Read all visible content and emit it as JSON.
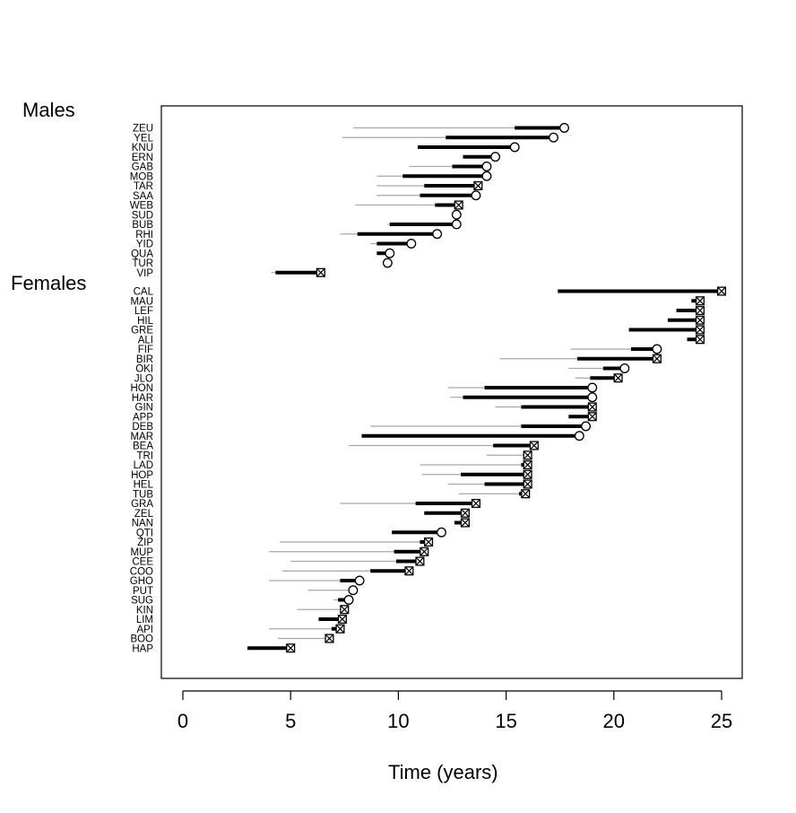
{
  "chart_data": {
    "type": "interval",
    "xlabel": "Time (years)",
    "xlim": [
      0,
      25
    ],
    "x_ticks": [
      "0",
      "5",
      "10",
      "15",
      "20",
      "25"
    ],
    "groups": [
      {
        "name": "Males",
        "items": [
          {
            "id": "ZEU",
            "thin_start": 7.9,
            "thick_start": 15.4,
            "end": 17.7,
            "marker": "open"
          },
          {
            "id": "YEL",
            "thin_start": 7.4,
            "thick_start": 12.2,
            "end": 17.2,
            "marker": "open"
          },
          {
            "id": "KNU",
            "thin_start": null,
            "thick_start": 10.9,
            "end": 15.4,
            "marker": "open"
          },
          {
            "id": "ERN",
            "thin_start": null,
            "thick_start": 13.0,
            "end": 14.5,
            "marker": "open"
          },
          {
            "id": "GAB",
            "thin_start": 10.5,
            "thick_start": 12.5,
            "end": 14.1,
            "marker": "open"
          },
          {
            "id": "MOB",
            "thin_start": 9.0,
            "thick_start": 10.2,
            "end": 14.1,
            "marker": "open"
          },
          {
            "id": "TAR",
            "thin_start": 9.0,
            "thick_start": 11.2,
            "end": 13.7,
            "marker": "censored"
          },
          {
            "id": "SAA",
            "thin_start": 9.0,
            "thick_start": 11.0,
            "end": 13.6,
            "marker": "open"
          },
          {
            "id": "WEB",
            "thin_start": 8.0,
            "thick_start": 11.7,
            "end": 12.8,
            "marker": "censored"
          },
          {
            "id": "SUD",
            "thin_start": null,
            "thick_start": null,
            "end": 12.7,
            "marker": "open"
          },
          {
            "id": "BUB",
            "thin_start": 9.5,
            "thick_start": 9.6,
            "end": 12.7,
            "marker": "open"
          },
          {
            "id": "RHI",
            "thin_start": 7.3,
            "thick_start": 8.1,
            "end": 11.8,
            "marker": "open"
          },
          {
            "id": "YID",
            "thin_start": 8.7,
            "thick_start": 9.0,
            "end": 10.6,
            "marker": "open"
          },
          {
            "id": "QUA",
            "thin_start": null,
            "thick_start": 9.0,
            "end": 9.6,
            "marker": "open"
          },
          {
            "id": "TUR",
            "thin_start": null,
            "thick_start": null,
            "end": 9.5,
            "marker": "open"
          },
          {
            "id": "VIP",
            "thin_start": 4.1,
            "thick_start": 4.3,
            "end": 6.4,
            "marker": "censored"
          }
        ]
      },
      {
        "name": "Females",
        "items": [
          {
            "id": "CAL",
            "thin_start": null,
            "thick_start": 17.4,
            "end": 25.0,
            "marker": "censored"
          },
          {
            "id": "MAU",
            "thin_start": null,
            "thick_start": 23.6,
            "end": 24.0,
            "marker": "censored"
          },
          {
            "id": "LEF",
            "thin_start": null,
            "thick_start": 22.9,
            "end": 24.0,
            "marker": "censored"
          },
          {
            "id": "HIL",
            "thin_start": null,
            "thick_start": 22.5,
            "end": 24.0,
            "marker": "censored"
          },
          {
            "id": "GRE",
            "thin_start": null,
            "thick_start": 20.7,
            "end": 24.0,
            "marker": "censored"
          },
          {
            "id": "ALI",
            "thin_start": null,
            "thick_start": 23.4,
            "end": 24.0,
            "marker": "censored"
          },
          {
            "id": "FIF",
            "thin_start": 18.0,
            "thick_start": 20.8,
            "end": 22.0,
            "marker": "open"
          },
          {
            "id": "BIR",
            "thin_start": 14.7,
            "thick_start": 18.3,
            "end": 22.0,
            "marker": "censored"
          },
          {
            "id": "OKI",
            "thin_start": 17.9,
            "thick_start": 19.5,
            "end": 20.5,
            "marker": "open"
          },
          {
            "id": "JLO",
            "thin_start": 18.2,
            "thick_start": 18.9,
            "end": 20.2,
            "marker": "censored"
          },
          {
            "id": "HON",
            "thin_start": 12.3,
            "thick_start": 14.0,
            "end": 19.0,
            "marker": "open"
          },
          {
            "id": "HAR",
            "thin_start": 12.4,
            "thick_start": 13.0,
            "end": 19.0,
            "marker": "open"
          },
          {
            "id": "GIN",
            "thin_start": 14.5,
            "thick_start": 15.7,
            "end": 19.0,
            "marker": "censored"
          },
          {
            "id": "APP",
            "thin_start": null,
            "thick_start": 17.9,
            "end": 19.0,
            "marker": "censored"
          },
          {
            "id": "DEB",
            "thin_start": 8.7,
            "thick_start": 15.7,
            "end": 18.7,
            "marker": "open"
          },
          {
            "id": "MAR",
            "thin_start": null,
            "thick_start": 8.3,
            "end": 18.4,
            "marker": "open"
          },
          {
            "id": "BEA",
            "thin_start": 7.7,
            "thick_start": 14.4,
            "end": 16.3,
            "marker": "censored"
          },
          {
            "id": "TRI",
            "thin_start": 14.1,
            "thick_start": null,
            "end": 16.0,
            "marker": "censored"
          },
          {
            "id": "LAD",
            "thin_start": 11.0,
            "thick_start": 15.7,
            "end": 16.0,
            "marker": "censored"
          },
          {
            "id": "HOP",
            "thin_start": 11.1,
            "thick_start": 12.9,
            "end": 16.0,
            "marker": "censored"
          },
          {
            "id": "HEL",
            "thin_start": 12.3,
            "thick_start": 14.0,
            "end": 16.0,
            "marker": "censored"
          },
          {
            "id": "TUB",
            "thin_start": 12.8,
            "thick_start": 15.6,
            "end": 15.9,
            "marker": "censored"
          },
          {
            "id": "GRA",
            "thin_start": 7.3,
            "thick_start": 10.8,
            "end": 13.6,
            "marker": "censored"
          },
          {
            "id": "ZEL",
            "thin_start": null,
            "thick_start": 11.2,
            "end": 13.1,
            "marker": "censored"
          },
          {
            "id": "NAN",
            "thin_start": null,
            "thick_start": 12.6,
            "end": 13.1,
            "marker": "censored"
          },
          {
            "id": "QTI",
            "thin_start": null,
            "thick_start": 9.7,
            "end": 12.0,
            "marker": "open"
          },
          {
            "id": "ZIP",
            "thin_start": 4.5,
            "thick_start": 11.0,
            "end": 11.4,
            "marker": "censored"
          },
          {
            "id": "MUP",
            "thin_start": 4.0,
            "thick_start": 9.8,
            "end": 11.2,
            "marker": "censored"
          },
          {
            "id": "CEE",
            "thin_start": 5.0,
            "thick_start": 9.9,
            "end": 11.0,
            "marker": "censored"
          },
          {
            "id": "COO",
            "thin_start": 4.6,
            "thick_start": 8.7,
            "end": 10.5,
            "marker": "censored"
          },
          {
            "id": "GHO",
            "thin_start": 4.0,
            "thick_start": 7.3,
            "end": 8.2,
            "marker": "open"
          },
          {
            "id": "PUT",
            "thin_start": 5.8,
            "thick_start": null,
            "end": 7.9,
            "marker": "open"
          },
          {
            "id": "SUG",
            "thin_start": 7.0,
            "thick_start": 7.2,
            "end": 7.7,
            "marker": "open"
          },
          {
            "id": "KIN",
            "thin_start": 5.3,
            "thick_start": 7.3,
            "end": 7.5,
            "marker": "censored"
          },
          {
            "id": "LIM",
            "thin_start": null,
            "thick_start": 6.3,
            "end": 7.4,
            "marker": "censored"
          },
          {
            "id": "API",
            "thin_start": 4.0,
            "thick_start": 6.9,
            "end": 7.3,
            "marker": "censored"
          },
          {
            "id": "BOO",
            "thin_start": 4.4,
            "thick_start": 6.6,
            "end": 6.8,
            "marker": "censored"
          },
          {
            "id": "HAP",
            "thin_start": null,
            "thick_start": 3.0,
            "end": 5.0,
            "marker": "censored"
          }
        ]
      }
    ],
    "grid": false,
    "legend": "none"
  }
}
